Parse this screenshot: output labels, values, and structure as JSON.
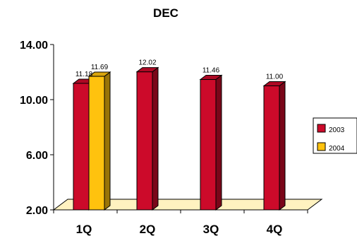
{
  "chart_data": {
    "type": "bar",
    "title": "DEC",
    "categories": [
      "1Q",
      "2Q",
      "3Q",
      "4Q"
    ],
    "series": [
      {
        "name": "2003",
        "color": "#cc0a2a",
        "values": [
          11.18,
          12.02,
          11.46,
          11.0
        ]
      },
      {
        "name": "2004",
        "color": "#ffc20e",
        "values": [
          11.69,
          null,
          null,
          null
        ]
      }
    ],
    "data_labels": [
      [
        "11.18",
        "12.02",
        "11.46",
        "11.00"
      ],
      [
        "11.69",
        null,
        null,
        null
      ]
    ],
    "y_ticks": [
      "2.00",
      "6.00",
      "10.00",
      "14.00"
    ],
    "y_tick_values": [
      2,
      6,
      10,
      14
    ],
    "ylim": [
      2,
      14
    ],
    "legend_position": "right",
    "grid": false,
    "style": "3d",
    "floor_color": "#fff2c0"
  }
}
